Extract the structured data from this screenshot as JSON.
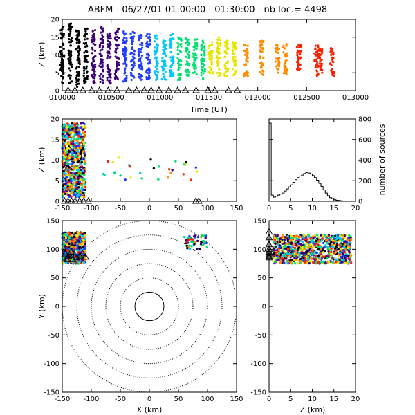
{
  "chart_data": {
    "title": "ABFM - 06/27/01 01:00:00 - 01:30:00 - nb loc.=    4498",
    "type": "scatter",
    "color_scale": [
      "#000000",
      "#3a0078",
      "#1f3cff",
      "#00c8ff",
      "#00e070",
      "#e6e600",
      "#ff8c00",
      "#ff2000"
    ],
    "panels": [
      {
        "id": "time-height",
        "type": "scatter",
        "xlabel": "Time (UT)",
        "ylabel": "Z (km)",
        "xlim": [
          10000,
          13000
        ],
        "ylim": [
          0,
          20
        ],
        "xticks": [
          "010000",
          "010500",
          "011000",
          "011500",
          "012000",
          "012500",
          "013000"
        ],
        "yticks": [
          "0",
          "5",
          "10",
          "15",
          "20"
        ],
        "bursts": [
          {
            "t": 10000,
            "zmin": 2,
            "zmax": 18
          },
          {
            "t": 10080,
            "zmin": 2,
            "zmax": 19
          },
          {
            "t": 10160,
            "zmin": 1,
            "zmax": 17
          },
          {
            "t": 10240,
            "zmin": 2,
            "zmax": 18
          },
          {
            "t": 10320,
            "zmin": 2,
            "zmax": 17
          },
          {
            "t": 10400,
            "zmin": 2,
            "zmax": 18
          },
          {
            "t": 10480,
            "zmin": 2,
            "zmax": 17
          },
          {
            "t": 10560,
            "zmin": 3,
            "zmax": 18
          },
          {
            "t": 10640,
            "zmin": 2,
            "zmax": 17
          },
          {
            "t": 10720,
            "zmin": 3,
            "zmax": 17
          },
          {
            "t": 10800,
            "zmin": 3,
            "zmax": 16
          },
          {
            "t": 10880,
            "zmin": 3,
            "zmax": 16
          },
          {
            "t": 10960,
            "zmin": 3,
            "zmax": 16
          },
          {
            "t": 11040,
            "zmin": 3,
            "zmax": 15
          },
          {
            "t": 11120,
            "zmin": 4,
            "zmax": 16
          },
          {
            "t": 11200,
            "zmin": 3,
            "zmax": 15
          },
          {
            "t": 11280,
            "zmin": 4,
            "zmax": 15
          },
          {
            "t": 11360,
            "zmin": 4,
            "zmax": 15
          },
          {
            "t": 11440,
            "zmin": 3,
            "zmax": 14
          },
          {
            "t": 11520,
            "zmin": 4,
            "zmax": 14
          },
          {
            "t": 11600,
            "zmin": 4,
            "zmax": 15
          },
          {
            "t": 11680,
            "zmin": 4,
            "zmax": 14
          },
          {
            "t": 11760,
            "zmin": 4,
            "zmax": 14
          },
          {
            "t": 11880,
            "zmin": 4,
            "zmax": 13
          },
          {
            "t": 12040,
            "zmin": 4,
            "zmax": 14
          },
          {
            "t": 12200,
            "zmin": 5,
            "zmax": 13
          },
          {
            "t": 12280,
            "zmin": 4,
            "zmax": 14
          },
          {
            "t": 12420,
            "zmin": 5,
            "zmax": 13
          },
          {
            "t": 12600,
            "zmin": 4,
            "zmax": 13
          },
          {
            "t": 12640,
            "zmin": 5,
            "zmax": 12
          },
          {
            "t": 12760,
            "zmin": 4,
            "zmax": 12
          }
        ],
        "station_times": [
          10060,
          10130,
          10210,
          10300,
          10380,
          10470,
          10560,
          10680,
          10760,
          10840,
          10910,
          10990,
          11090,
          11180,
          11260,
          11370,
          11490,
          11560,
          11700,
          11790
        ]
      },
      {
        "id": "x-height",
        "type": "scatter",
        "xlabel": "",
        "ylabel": "Z (km)",
        "xlim": [
          -150,
          150
        ],
        "ylim": [
          0,
          20
        ],
        "xticks": [
          "-150",
          "-100",
          "-50",
          "0",
          "50",
          "100",
          "150"
        ],
        "yticks": [
          "0",
          "5",
          "10",
          "15",
          "20"
        ],
        "clusters": [
          {
            "xmin": -150,
            "xmax": -110,
            "zmin": 1,
            "zmax": 19,
            "n": 700
          },
          {
            "xmin": -80,
            "xmax": 90,
            "zmin": 5,
            "zmax": 11,
            "n": 30
          }
        ],
        "station_xs": [
          -146,
          -140,
          -134,
          -128,
          -120,
          -113,
          -105,
          80,
          85
        ]
      },
      {
        "id": "height-histogram",
        "type": "line",
        "xlabel": "",
        "ylabel": "number of sources",
        "xlim": [
          0,
          20
        ],
        "ylim": [
          0,
          800
        ],
        "xticks": [
          "0",
          "5",
          "10",
          "15",
          "20"
        ],
        "yticks": [
          "0",
          "200",
          "400",
          "600",
          "800"
        ],
        "bins_km": [
          0.5,
          1,
          1.5,
          2,
          2.5,
          3,
          3.5,
          4,
          4.5,
          5,
          5.5,
          6,
          6.5,
          7,
          7.5,
          8,
          8.5,
          9,
          9.5,
          10,
          10.5,
          11,
          11.5,
          12,
          12.5,
          13,
          13.5,
          14,
          14.5,
          15,
          15.5,
          16,
          16.5,
          17,
          17.5,
          18,
          18.5,
          19,
          19.5,
          20
        ],
        "counts": [
          760,
          60,
          40,
          50,
          60,
          70,
          80,
          100,
          120,
          140,
          160,
          185,
          210,
          230,
          245,
          255,
          270,
          280,
          275,
          265,
          250,
          230,
          205,
          175,
          145,
          110,
          80,
          55,
          35,
          25,
          15,
          10,
          8,
          5,
          3,
          2,
          2,
          1,
          0,
          0
        ]
      },
      {
        "id": "plan-view",
        "type": "scatter",
        "xlabel": "X (km)",
        "ylabel": "Y (km)",
        "xlim": [
          -150,
          150
        ],
        "ylim": [
          -150,
          150
        ],
        "xticks": [
          "-150",
          "-100",
          "-50",
          "0",
          "50",
          "100",
          "150"
        ],
        "yticks": [
          "-150",
          "-100",
          "-50",
          "0",
          "50",
          "100",
          "150"
        ],
        "range_rings_km": [
          25,
          50,
          75,
          100,
          125,
          150
        ],
        "clusters": [
          {
            "xmin": -150,
            "xmax": -110,
            "ymin": 75,
            "ymax": 130,
            "n": 700
          },
          {
            "xmin": 60,
            "xmax": 100,
            "ymin": 100,
            "ymax": 125,
            "n": 50
          }
        ],
        "stations": [
          [
            -145,
            92
          ],
          [
            -140,
            88
          ],
          [
            -135,
            95
          ],
          [
            -130,
            90
          ],
          [
            -125,
            85
          ],
          [
            -120,
            88
          ],
          [
            -115,
            92
          ],
          [
            -110,
            86
          ],
          [
            -142,
            82
          ],
          [
            -132,
            82
          ]
        ]
      },
      {
        "id": "height-y",
        "type": "scatter",
        "xlabel": "Z (km)",
        "ylabel": "",
        "xlim": [
          0,
          20
        ],
        "ylim": [
          -150,
          150
        ],
        "xticks": [
          "0",
          "5",
          "10",
          "15",
          "20"
        ],
        "yticks": [
          "-150",
          "-100",
          "-50",
          "0",
          "50",
          "100",
          "150"
        ],
        "clusters": [
          {
            "zmin": 1,
            "zmax": 19,
            "ymin": 75,
            "ymax": 125,
            "n": 900
          }
        ],
        "station_ys": [
          85,
          88,
          92,
          95,
          100,
          108,
          120,
          130
        ]
      }
    ]
  }
}
